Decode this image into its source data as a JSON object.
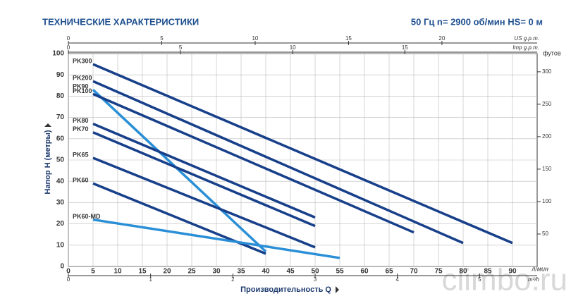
{
  "chart_data": {
    "type": "line",
    "title": "ТЕХНИЧЕСКИЕ ХАРАКТЕРИСТИКИ",
    "subtitle": "50 Гц n= 2900 об/мин HS= 0 м",
    "xlabel": "Производительность Q",
    "xunit": "л/мин",
    "ylabel": "Напор H (метры)",
    "y2label": "футов",
    "watermark": "climbo.ru",
    "xlim": [
      0,
      95
    ],
    "ylim": [
      0,
      100
    ],
    "xticks": [
      0,
      5,
      10,
      15,
      20,
      25,
      30,
      35,
      40,
      45,
      50,
      55,
      60,
      65,
      70,
      75,
      80,
      85,
      90
    ],
    "yticks": [
      0,
      10,
      20,
      30,
      40,
      50,
      60,
      70,
      80,
      90,
      100
    ],
    "y2lim": [
      0,
      328.08
    ],
    "y2ticks": [
      50,
      100,
      150,
      200,
      250,
      300
    ],
    "top_axis": {
      "label": "US g.p.m.",
      "lim": [
        0,
        25.1
      ],
      "ticks": [
        0,
        5,
        10,
        15,
        20
      ]
    },
    "top_axis2": {
      "label": "Imp g.p.m.",
      "lim": [
        0,
        20.9
      ],
      "ticks": [
        0,
        5,
        10,
        15
      ]
    },
    "bottom_axis2": {
      "label": "m³/h",
      "lim": [
        0,
        5.7
      ],
      "ticks": [
        0,
        1,
        2,
        3,
        4,
        5
      ]
    },
    "grid": true,
    "series": [
      {
        "name": "PK300",
        "color": "#173f8a",
        "x": [
          5,
          90
        ],
        "values": [
          95,
          11
        ]
      },
      {
        "name": "PK200",
        "color": "#173f8a",
        "x": [
          5,
          80
        ],
        "values": [
          87,
          11
        ]
      },
      {
        "name": "PK90",
        "color": "#2a8fd6",
        "x": [
          5,
          40
        ],
        "values": [
          83,
          7
        ]
      },
      {
        "name": "PK100",
        "color": "#173f8a",
        "x": [
          5,
          70
        ],
        "values": [
          81,
          16
        ]
      },
      {
        "name": "PK80",
        "color": "#173f8a",
        "x": [
          5,
          50
        ],
        "values": [
          67,
          23
        ]
      },
      {
        "name": "PK70",
        "color": "#173f8a",
        "x": [
          5,
          50
        ],
        "values": [
          63,
          19
        ]
      },
      {
        "name": "PK65",
        "color": "#173f8a",
        "x": [
          5,
          50
        ],
        "values": [
          51,
          9
        ]
      },
      {
        "name": "PK60",
        "color": "#173f8a",
        "x": [
          5,
          40
        ],
        "values": [
          39,
          6
        ]
      },
      {
        "name": "PK60-MD",
        "color": "#2a8fd6",
        "x": [
          5,
          55
        ],
        "values": [
          22,
          4
        ]
      }
    ]
  }
}
